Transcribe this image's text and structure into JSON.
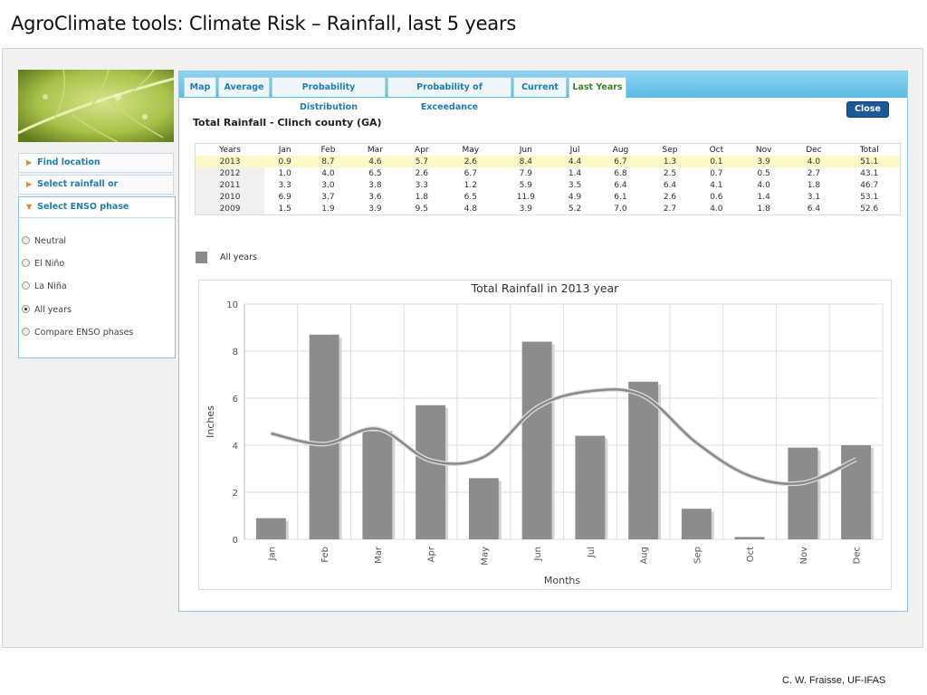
{
  "slide": {
    "title": "AgroClimate tools: Climate Risk – Rainfall, last 5 years",
    "credit": "C. W. Fraisse, UF-IFAS"
  },
  "sidebar": {
    "items": [
      {
        "label": "Find location",
        "icon": "triangle-right-icon"
      },
      {
        "label": "Select rainfall or temperature",
        "icon": "triangle-right-icon"
      }
    ],
    "enso": {
      "label": "Select ENSO phase",
      "icon": "triangle-down-icon",
      "options": [
        "Neutral",
        "El Niño",
        "La Niña",
        "All years",
        "Compare ENSO phases"
      ],
      "selected": "All years"
    }
  },
  "tabs": [
    {
      "label": "Map",
      "active": false
    },
    {
      "label": "Average",
      "active": false
    },
    {
      "label": "Probability Distribution",
      "active": false
    },
    {
      "label": "Probability of Exceedance",
      "active": false
    },
    {
      "label": "Current",
      "active": false
    },
    {
      "label": "Last Years",
      "active": true
    }
  ],
  "close_label": "Close",
  "table": {
    "title": "Total Rainfall - Clinch county (GA)",
    "headers": [
      "Years",
      "Jan",
      "Feb",
      "Mar",
      "Apr",
      "May",
      "Jun",
      "Jul",
      "Aug",
      "Sep",
      "Oct",
      "Nov",
      "Dec",
      "Total"
    ],
    "rows": [
      [
        "2013",
        "0.9",
        "8.7",
        "4.6",
        "5.7",
        "2.6",
        "8.4",
        "4.4",
        "6.7",
        "1.3",
        "0.1",
        "3.9",
        "4.0",
        "51.1"
      ],
      [
        "2012",
        "1.0",
        "4.0",
        "6.5",
        "2.6",
        "6.7",
        "7.9",
        "1.4",
        "6.8",
        "2.5",
        "0.7",
        "0.5",
        "2.7",
        "43.1"
      ],
      [
        "2011",
        "3.3",
        "3.0",
        "3.8",
        "3.3",
        "1.2",
        "5.9",
        "3.5",
        "6.4",
        "6.4",
        "4.1",
        "4.0",
        "1.8",
        "46.7"
      ],
      [
        "2010",
        "6.9",
        "3.7",
        "3.6",
        "1.8",
        "6.5",
        "11.9",
        "4.9",
        "6.1",
        "2.6",
        "0.6",
        "1.4",
        "3.1",
        "53.1"
      ],
      [
        "2009",
        "1.5",
        "1.9",
        "3.9",
        "9.5",
        "4.8",
        "3.9",
        "5.2",
        "7.0",
        "2.7",
        "4.0",
        "1.8",
        "6.4",
        "52.6"
      ]
    ],
    "highlight_row": 0
  },
  "legend_label": "All years",
  "chart_data": {
    "type": "bar",
    "title": "Total Rainfall in 2013 year",
    "xlabel": "Months",
    "ylabel": "Inches",
    "categories": [
      "Jan",
      "Feb",
      "Mar",
      "Apr",
      "May",
      "Jun",
      "Jul",
      "Aug",
      "Sep",
      "Oct",
      "Nov",
      "Dec"
    ],
    "values": [
      0.9,
      8.7,
      4.6,
      5.7,
      2.6,
      8.4,
      4.4,
      6.7,
      1.3,
      0.1,
      3.9,
      4.0
    ],
    "line_values": [
      4.5,
      4.05,
      4.7,
      3.35,
      3.5,
      5.6,
      6.3,
      6.1,
      4.1,
      2.7,
      2.4,
      3.4
    ],
    "ylim": [
      0,
      10
    ],
    "yticks": [
      0,
      2,
      4,
      6,
      8,
      10
    ],
    "grid": true,
    "colors": {
      "bar": "#8c8c8c",
      "line": "#888888",
      "grid": "#dddddd"
    }
  }
}
